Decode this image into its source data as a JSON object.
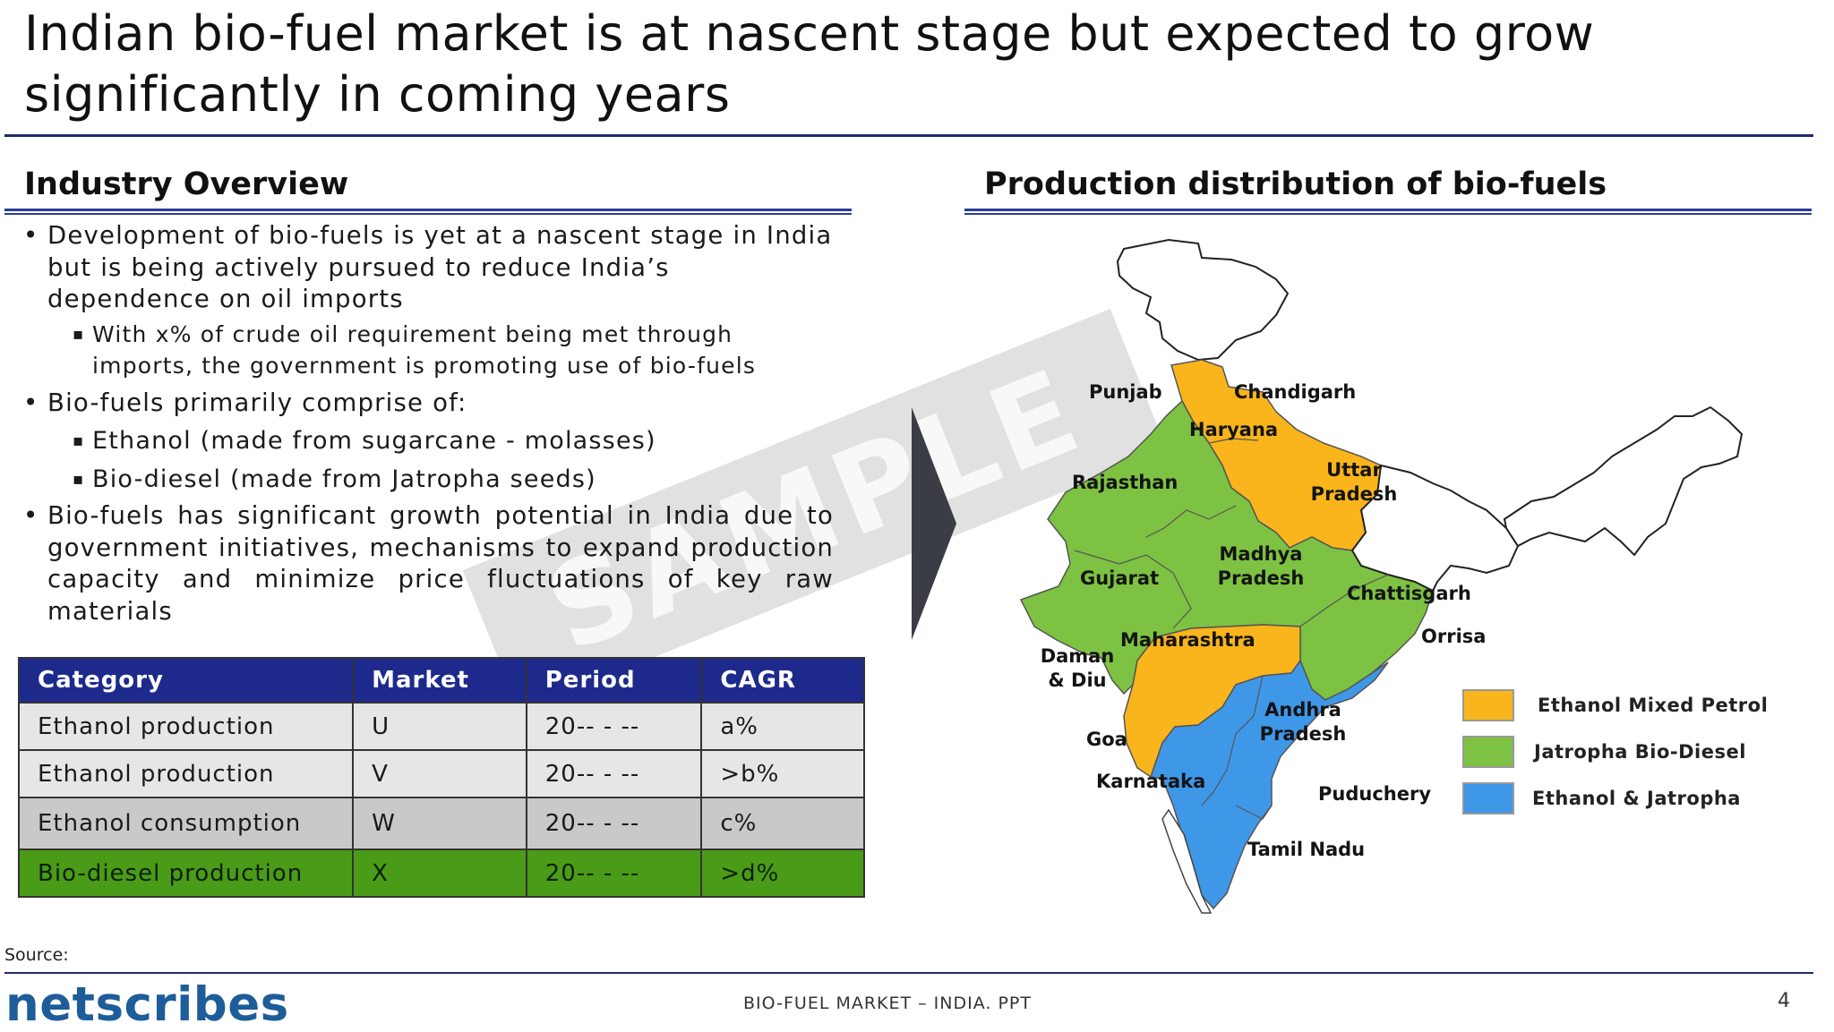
{
  "title": "Indian bio-fuel market is at nascent stage but expected to grow significantly in coming years",
  "left": {
    "heading": "Industry Overview",
    "bullets": [
      "Development of bio-fuels is yet at a nascent stage in India but is being actively pursued to reduce India’s dependence on oil imports",
      "With x% of crude oil requirement being met through imports, the government is promoting use of bio-fuels",
      "Bio-fuels primarily comprise of:",
      "Ethanol (made from sugarcane - molasses)",
      "Bio-diesel (made from Jatropha seeds)",
      "Bio-fuels has significant growth potential in India due to government initiatives, mechanisms to expand production capacity and minimize price fluctuations of key raw materials"
    ]
  },
  "table": {
    "headers": [
      "Category",
      "Market",
      "Period",
      "CAGR"
    ],
    "rows": [
      [
        "Ethanol production",
        "U",
        "20-- - --",
        "a%"
      ],
      [
        "Ethanol production",
        "V",
        "20-- - --",
        ">b%"
      ],
      [
        "Ethanol consumption",
        "W",
        "20-- - --",
        "c%"
      ],
      [
        "Bio-diesel production",
        "X",
        "20-- - --",
        ">d%"
      ]
    ]
  },
  "right": {
    "heading": "Production distribution of bio-fuels",
    "states": {
      "punjab": "Punjab",
      "chandigarh": "Chandigarh",
      "haryana": "Haryana",
      "rajasthan": "Rajasthan",
      "uttar_pradesh": "Uttar Pradesh",
      "gujarat": "Gujarat",
      "madhya_pradesh": "Madhya Pradesh",
      "chattisgarh": "Chattisgarh",
      "daman_diu": "Daman & Diu",
      "maharashtra": "Maharashtra",
      "orrisa": "Orrisa",
      "goa": "Goa",
      "andhra_pradesh": "Andhra Pradesh",
      "karnataka": "Karnataka",
      "puduchery": "Puduchery",
      "tamil_nadu": "Tamil Nadu"
    },
    "legend": [
      {
        "label": "Ethanol Mixed Petrol",
        "color": "#f9b51b"
      },
      {
        "label": "Jatropha Bio-Diesel",
        "color": "#7dc242"
      },
      {
        "label": "Ethanol & Jatropha",
        "color": "#3f97e8"
      }
    ]
  },
  "watermark": "SAMPLE",
  "source_label": "Source:",
  "logo": "netscribes",
  "footer": "BIO-FUEL MARKET – INDIA. PPT",
  "page_number": "4",
  "colors": {
    "navy": "#1d2a8c",
    "green_row": "#4a9b17",
    "orange": "#f9b51b",
    "green": "#7dc242",
    "blue": "#3f97e8"
  }
}
